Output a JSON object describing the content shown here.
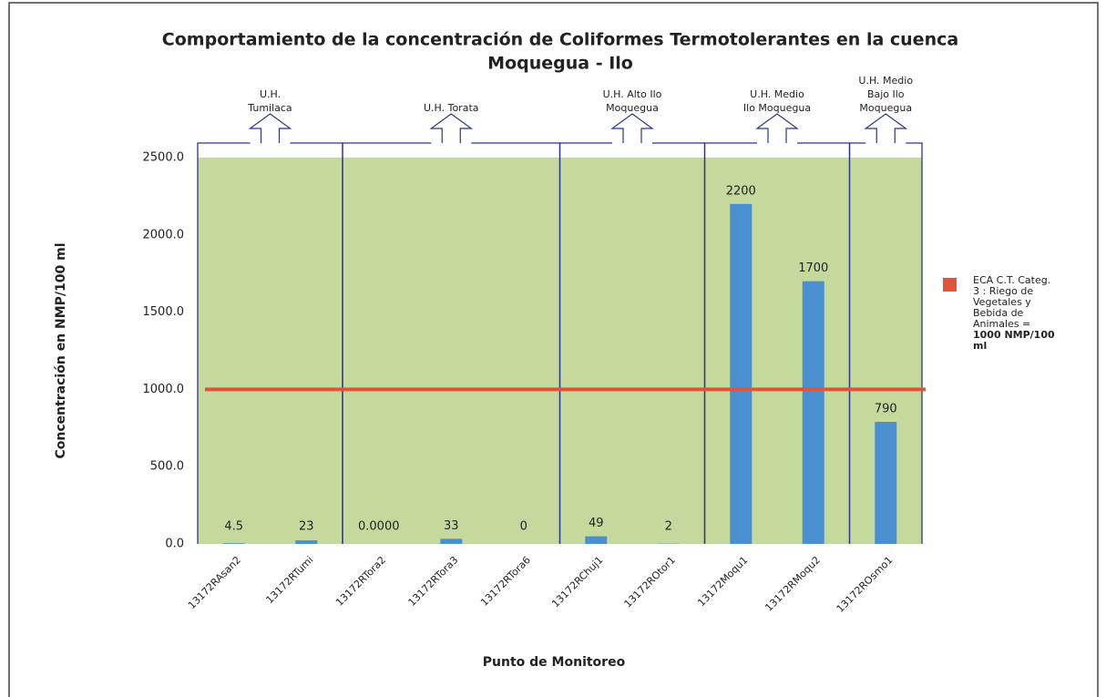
{
  "chart_data": {
    "type": "bar",
    "title": [
      "Comportamiento de la concentración de Coliformes Termotolerantes en la cuenca",
      "Moquegua - Ilo"
    ],
    "x_label": "Punto de Monitoreo",
    "y_label": "Concentración en NMP/100 ml",
    "categories": [
      "13172RAsan2",
      "13172RTumi",
      "13172RTora2",
      "13172RTora3",
      "13172RTora6",
      "13172RChuj1",
      "13172ROtor1",
      "13172Moqu1",
      "13172RMoqu2",
      "13172ROsmo1"
    ],
    "values": [
      4.5,
      23,
      0,
      33,
      0,
      49,
      2,
      2200,
      1700,
      790
    ],
    "value_labels": [
      "4.5",
      "23",
      "0.0000",
      "33",
      "0",
      "49",
      "2",
      "2200",
      "1700",
      "790"
    ],
    "color": "#4a8fd0",
    "ylim": [
      0,
      2500
    ],
    "yticks": [
      {
        "value": 0,
        "label": "0.0"
      },
      {
        "value": 500,
        "label": "500.0"
      },
      {
        "value": 1000,
        "label": "1000.0"
      },
      {
        "value": 1500,
        "label": "1500.0"
      },
      {
        "value": 2000,
        "label": "2000.0"
      },
      {
        "value": 2500,
        "label": "2500.0"
      }
    ],
    "background": "#c6d99c",
    "reference_line": {
      "value": 1000,
      "color": "#e0553a",
      "label": [
        "ECA C.T. Categ.",
        "3 : Riego de",
        "Vegetales y",
        "Bebida de",
        "Animales ="
      ],
      "label_bold": [
        "1000 NMP/100",
        "ml"
      ]
    },
    "groups": [
      {
        "label": [
          "U.H.",
          "Tumilaca"
        ],
        "size": 2
      },
      {
        "label": [
          "U.H. Torata"
        ],
        "size": 3
      },
      {
        "label": [
          "U.H. Alto Ilo",
          "Moquegua"
        ],
        "size": 2
      },
      {
        "label": [
          "U.H. Medio",
          "Ilo Moquegua"
        ],
        "size": 2
      },
      {
        "label": [
          "U.H. Medio",
          "Bajo Ilo",
          "Moquegua"
        ],
        "size": 1
      }
    ]
  }
}
